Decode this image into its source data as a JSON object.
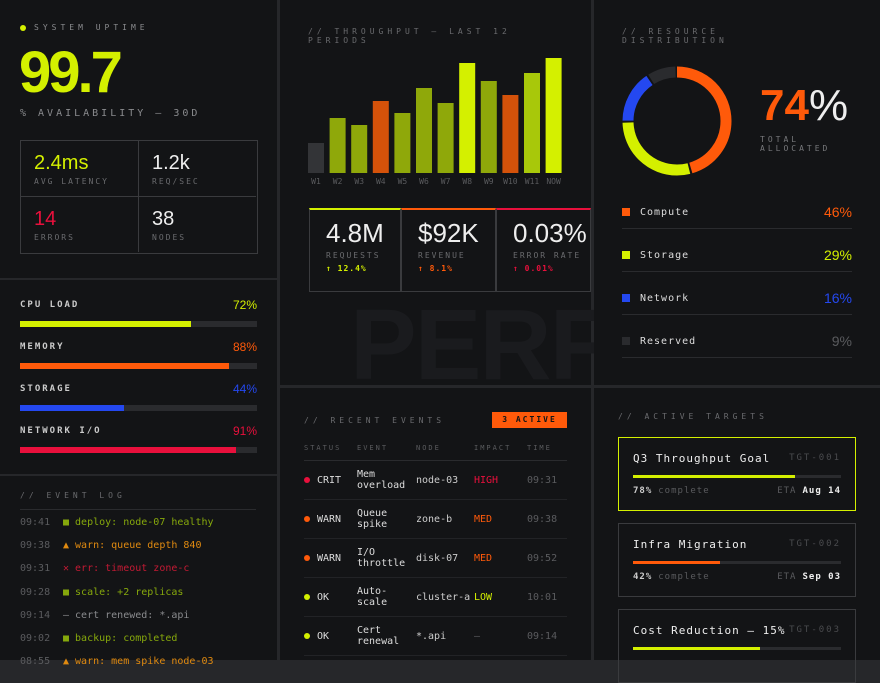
{
  "uptime": {
    "label": "SYSTEM UPTIME",
    "value": 99.7,
    "subtitle": "% AVAILABILITY — 30D",
    "color": "#d4f000",
    "stats": [
      {
        "value": "2.4ms",
        "label": "AVG LATENCY",
        "color": "#d4f000"
      },
      {
        "value": "1.2k",
        "label": "REQ/SEC",
        "color": "#eeeeee"
      },
      {
        "value": "14",
        "label": "ERRORS",
        "color": "#e8103c"
      },
      {
        "value": "38",
        "label": "NODES",
        "color": "#eeeeee"
      }
    ]
  },
  "load": [
    {
      "name": "CPU LOAD",
      "value": 72,
      "value_label": "72%",
      "color": "#d4f000"
    },
    {
      "name": "MEMORY",
      "value": 88,
      "value_label": "88%",
      "color": "#ff5a0a"
    },
    {
      "name": "STORAGE",
      "value": 44,
      "value_label": "44%",
      "color": "#2448f0"
    },
    {
      "name": "NETWORK I/O",
      "value": 91,
      "value_label": "91%",
      "color": "#e8103c"
    }
  ],
  "event_log": {
    "title": "// EVENT LOG",
    "entries": [
      {
        "time": "09:41",
        "text": "■ deploy: node-07 healthy",
        "color": "#86a80c"
      },
      {
        "time": "09:38",
        "text": "▲ warn: queue depth 840",
        "color": "#e08a10"
      },
      {
        "time": "09:31",
        "text": "✕ err: timeout zone-c",
        "color": "#c41a34"
      },
      {
        "time": "09:28",
        "text": "■ scale: +2 replicas",
        "color": "#86a80c"
      },
      {
        "time": "09:14",
        "text": "— cert renewed: *.api",
        "color": "#8a8b8e"
      },
      {
        "time": "09:02",
        "text": "■ backup: completed",
        "color": "#86a80c"
      },
      {
        "time": "08:55",
        "text": "▲ warn: mem spike node-03",
        "color": "#e08a10"
      }
    ]
  },
  "chart_data": [
    {
      "type": "bar",
      "title": "// THROUGHPUT — LAST 12 PERIODS",
      "categories": [
        "W1",
        "W2",
        "W3",
        "W4",
        "W5",
        "W6",
        "W7",
        "W8",
        "W9",
        "W10",
        "W11",
        "NOW"
      ],
      "values": [
        30,
        55,
        48,
        72,
        60,
        85,
        70,
        110,
        92,
        78,
        100,
        115
      ],
      "colors": [
        "#333437",
        "#8fa80a",
        "#8fa80a",
        "#d4520a",
        "#8fa80a",
        "#8fa80a",
        "#8fa80a",
        "#d4f000",
        "#8fa80a",
        "#d4520a",
        "#a8c80a",
        "#d4f000"
      ],
      "ylim": [
        0,
        120
      ]
    },
    {
      "type": "pie",
      "title": "// RESOURCE DISTRIBUTION",
      "center_value": "74",
      "center_unit": "%",
      "center_color": "#ff5a0a",
      "center_label": "TOTAL ALLOCATED",
      "categories": [
        "Compute",
        "Storage",
        "Network",
        "Reserved"
      ],
      "values": [
        46,
        29,
        16,
        9
      ],
      "value_labels": [
        "46%",
        "29%",
        "16%",
        "9%"
      ],
      "colors": [
        "#ff5a0a",
        "#d4f000",
        "#2448f0",
        "#2a2b2e"
      ],
      "label_colors": [
        "#ff5a0a",
        "#d4f000",
        "#2448f0",
        "#5a5b5e"
      ]
    }
  ],
  "kpis": [
    {
      "value": "4.8M",
      "label": "REQUESTS",
      "delta": "↑ 12.4%",
      "color": "#d4f000"
    },
    {
      "value": "$92K",
      "label": "REVENUE",
      "delta": "↑ 8.1%",
      "color": "#ff5a0a"
    },
    {
      "value": "0.03%",
      "label": "ERROR RATE",
      "delta": "↑ 0.01%",
      "color": "#e8103c"
    }
  ],
  "watermark": "PERF",
  "events": {
    "title": "// RECENT EVENTS",
    "badge": "3 ACTIVE",
    "columns": [
      "STATUS",
      "EVENT",
      "NODE",
      "IMPACT",
      "TIME"
    ],
    "rows": [
      {
        "status": "CRIT",
        "status_color": "#e8103c",
        "event": "Mem overload",
        "node": "node-03",
        "impact": "HIGH",
        "impact_color": "#e8103c",
        "time": "09:31"
      },
      {
        "status": "WARN",
        "status_color": "#ff5a0a",
        "event": "Queue spike",
        "node": "zone-b",
        "impact": "MED",
        "impact_color": "#ff5a0a",
        "time": "09:38"
      },
      {
        "status": "WARN",
        "status_color": "#ff5a0a",
        "event": "I/O throttle",
        "node": "disk-07",
        "impact": "MED",
        "impact_color": "#ff5a0a",
        "time": "09:52"
      },
      {
        "status": "OK",
        "status_color": "#d4f000",
        "event": "Auto-scale",
        "node": "cluster-a",
        "impact": "LOW",
        "impact_color": "#d4f000",
        "time": "10:01"
      },
      {
        "status": "OK",
        "status_color": "#d4f000",
        "event": "Cert renewal",
        "node": "*.api",
        "impact": "—",
        "impact_color": "#5a5b5e",
        "time": "09:14"
      }
    ]
  },
  "targets": {
    "title": "// ACTIVE TARGETS",
    "items": [
      {
        "name": "Q3 Throughput Goal",
        "id": "TGT-001",
        "progress": 78,
        "progress_label": "78%",
        "progress_text": "complete",
        "eta_label": "ETA",
        "eta": "Aug 14",
        "color": "#d4f000",
        "border_color": "#d4f000"
      },
      {
        "name": "Infra Migration",
        "id": "TGT-002",
        "progress": 42,
        "progress_label": "42%",
        "progress_text": "complete",
        "eta_label": "ETA",
        "eta": "Sep 03",
        "color": "#ff5a0a",
        "border_color": "#3a3b3e"
      },
      {
        "name": "Cost Reduction — 15%",
        "id": "TGT-003",
        "progress": 61,
        "color": "#d4f000",
        "border_color": "#3a3b3e"
      }
    ]
  }
}
